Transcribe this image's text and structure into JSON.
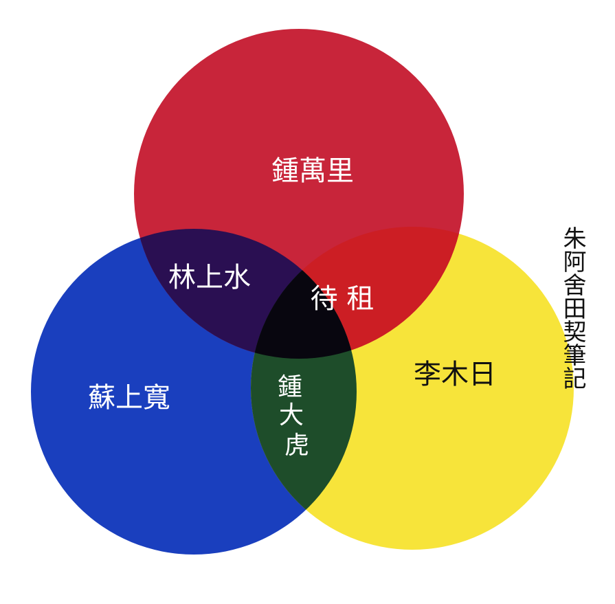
{
  "side_title": "朱阿舍田契筆記",
  "circles": {
    "red": {
      "label": "鍾萬里",
      "color": "#c8253a"
    },
    "blue": {
      "label": "蘇上寬",
      "color": "#1a3fbe"
    },
    "yellow": {
      "label": "李木日",
      "color": "#f7e43a"
    }
  },
  "overlaps": {
    "red_blue": {
      "label": "林上水",
      "color": "#2a0f52"
    },
    "red_yellow": {
      "label": "",
      "color": "#cc1e24"
    },
    "blue_yellow": {
      "label_lines": [
        "鍾",
        "大",
        "虎"
      ],
      "color": "#1e4d2a"
    },
    "center": {
      "label": "待 租",
      "color": "#08060f"
    }
  }
}
